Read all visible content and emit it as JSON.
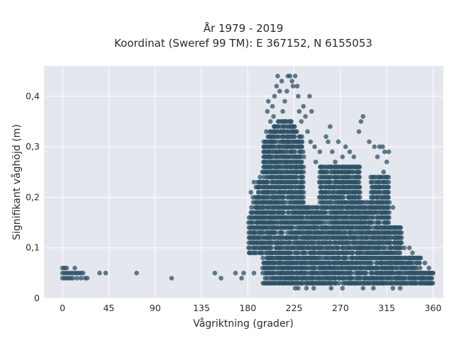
{
  "chart_data": {
    "type": "scatter",
    "title_lines": [
      "År 1979 - 2019",
      "Koordinat (Sweref 99 TM): E 367152, N 6155053"
    ],
    "xlabel": "Vågriktning (grader)",
    "ylabel": "Signifikant våghöjd (m)",
    "xlim": [
      -18,
      370
    ],
    "ylim": [
      0,
      0.46
    ],
    "xticks": [
      0,
      45,
      90,
      135,
      180,
      225,
      270,
      315,
      360
    ],
    "yticks": [
      0,
      0.1,
      0.2,
      0.3,
      0.4
    ],
    "ytick_labels": [
      "0",
      "0,1",
      "0,2",
      "0,3",
      "0,4"
    ],
    "grid": true,
    "legend": "none",
    "marker_color": "#2e5166",
    "background_color": "#e5e7ee",
    "points": [
      [
        0,
        0.04
      ],
      [
        0,
        0.05
      ],
      [
        0,
        0.06
      ],
      [
        2,
        0.04
      ],
      [
        2,
        0.05
      ],
      [
        2,
        0.06
      ],
      [
        4,
        0.04
      ],
      [
        4,
        0.05
      ],
      [
        4,
        0.06
      ],
      [
        6,
        0.04
      ],
      [
        6,
        0.05
      ],
      [
        8,
        0.04
      ],
      [
        8,
        0.05
      ],
      [
        10,
        0.04
      ],
      [
        10,
        0.05
      ],
      [
        12,
        0.05
      ],
      [
        12,
        0.06
      ],
      [
        14,
        0.04
      ],
      [
        14,
        0.05
      ],
      [
        16,
        0.05
      ],
      [
        18,
        0.04
      ],
      [
        18,
        0.05
      ],
      [
        20,
        0.05
      ],
      [
        22,
        0.04
      ],
      [
        24,
        0.04
      ],
      [
        36,
        0.05
      ],
      [
        42,
        0.05
      ],
      [
        72,
        0.05
      ],
      [
        106,
        0.04
      ],
      [
        148,
        0.05
      ],
      [
        154,
        0.04
      ],
      [
        168,
        0.05
      ],
      [
        174,
        0.04
      ],
      [
        176,
        0.05
      ],
      [
        186,
        0.05
      ],
      [
        183,
        0.21
      ],
      [
        185,
        0.2
      ],
      [
        188,
        0.22
      ],
      [
        186,
        0.23
      ],
      [
        190,
        0.18
      ],
      [
        188,
        0.17
      ],
      [
        192,
        0.16
      ],
      [
        189,
        0.15
      ],
      [
        191,
        0.14
      ],
      [
        190,
        0.12
      ],
      [
        192,
        0.1
      ],
      [
        194,
        0.09
      ],
      [
        193,
        0.11
      ],
      [
        191,
        0.13
      ],
      [
        196,
        0.3
      ],
      [
        198,
        0.33
      ],
      [
        199,
        0.37
      ],
      [
        200,
        0.39
      ],
      [
        202,
        0.35
      ],
      [
        201,
        0.28
      ],
      [
        203,
        0.31
      ],
      [
        205,
        0.36
      ],
      [
        204,
        0.38
      ],
      [
        206,
        0.4
      ],
      [
        208,
        0.42
      ],
      [
        209,
        0.44
      ],
      [
        211,
        0.41
      ],
      [
        213,
        0.43
      ],
      [
        214,
        0.37
      ],
      [
        216,
        0.39
      ],
      [
        218,
        0.41
      ],
      [
        219,
        0.44
      ],
      [
        221,
        0.44
      ],
      [
        223,
        0.43
      ],
      [
        224,
        0.42
      ],
      [
        226,
        0.44
      ],
      [
        228,
        0.42
      ],
      [
        229,
        0.4
      ],
      [
        230,
        0.37
      ],
      [
        232,
        0.35
      ],
      [
        234,
        0.38
      ],
      [
        236,
        0.36
      ],
      [
        238,
        0.33
      ],
      [
        240,
        0.4
      ],
      [
        242,
        0.37
      ],
      [
        241,
        0.31
      ],
      [
        245,
        0.3
      ],
      [
        246,
        0.27
      ],
      [
        250,
        0.29
      ],
      [
        256,
        0.32
      ],
      [
        260,
        0.34
      ],
      [
        258,
        0.31
      ],
      [
        262,
        0.29
      ],
      [
        265,
        0.27
      ],
      [
        268,
        0.31
      ],
      [
        272,
        0.28
      ],
      [
        275,
        0.3
      ],
      [
        279,
        0.29
      ],
      [
        283,
        0.28
      ],
      [
        285,
        0.26
      ],
      [
        288,
        0.33
      ],
      [
        290,
        0.35
      ],
      [
        292,
        0.36
      ],
      [
        298,
        0.31
      ],
      [
        303,
        0.3
      ],
      [
        306,
        0.28
      ],
      [
        308,
        0.3
      ],
      [
        311,
        0.3
      ],
      [
        313,
        0.29
      ],
      [
        315,
        0.27
      ],
      [
        317,
        0.29
      ],
      [
        312,
        0.25
      ],
      [
        307,
        0.22
      ],
      [
        316,
        0.2
      ],
      [
        321,
        0.18
      ],
      [
        323,
        0.14
      ],
      [
        326,
        0.12
      ],
      [
        328,
        0.11
      ],
      [
        332,
        0.1
      ],
      [
        337,
        0.1
      ],
      [
        340,
        0.09
      ],
      [
        344,
        0.07
      ],
      [
        348,
        0.08
      ],
      [
        352,
        0.07
      ],
      [
        356,
        0.06
      ],
      [
        358,
        0.05
      ],
      [
        226,
        0.02
      ],
      [
        229,
        0.02
      ],
      [
        237,
        0.02
      ],
      [
        244,
        0.02
      ],
      [
        252,
        0.03
      ],
      [
        261,
        0.02
      ],
      [
        272,
        0.02
      ],
      [
        283,
        0.03
      ],
      [
        292,
        0.02
      ],
      [
        302,
        0.02
      ],
      [
        316,
        0.03
      ],
      [
        321,
        0.02
      ],
      [
        328,
        0.02
      ],
      [
        331,
        0.03
      ],
      [
        343,
        0.03
      ],
      [
        350,
        0.04
      ],
      [
        355,
        0.03
      ]
    ]
  }
}
